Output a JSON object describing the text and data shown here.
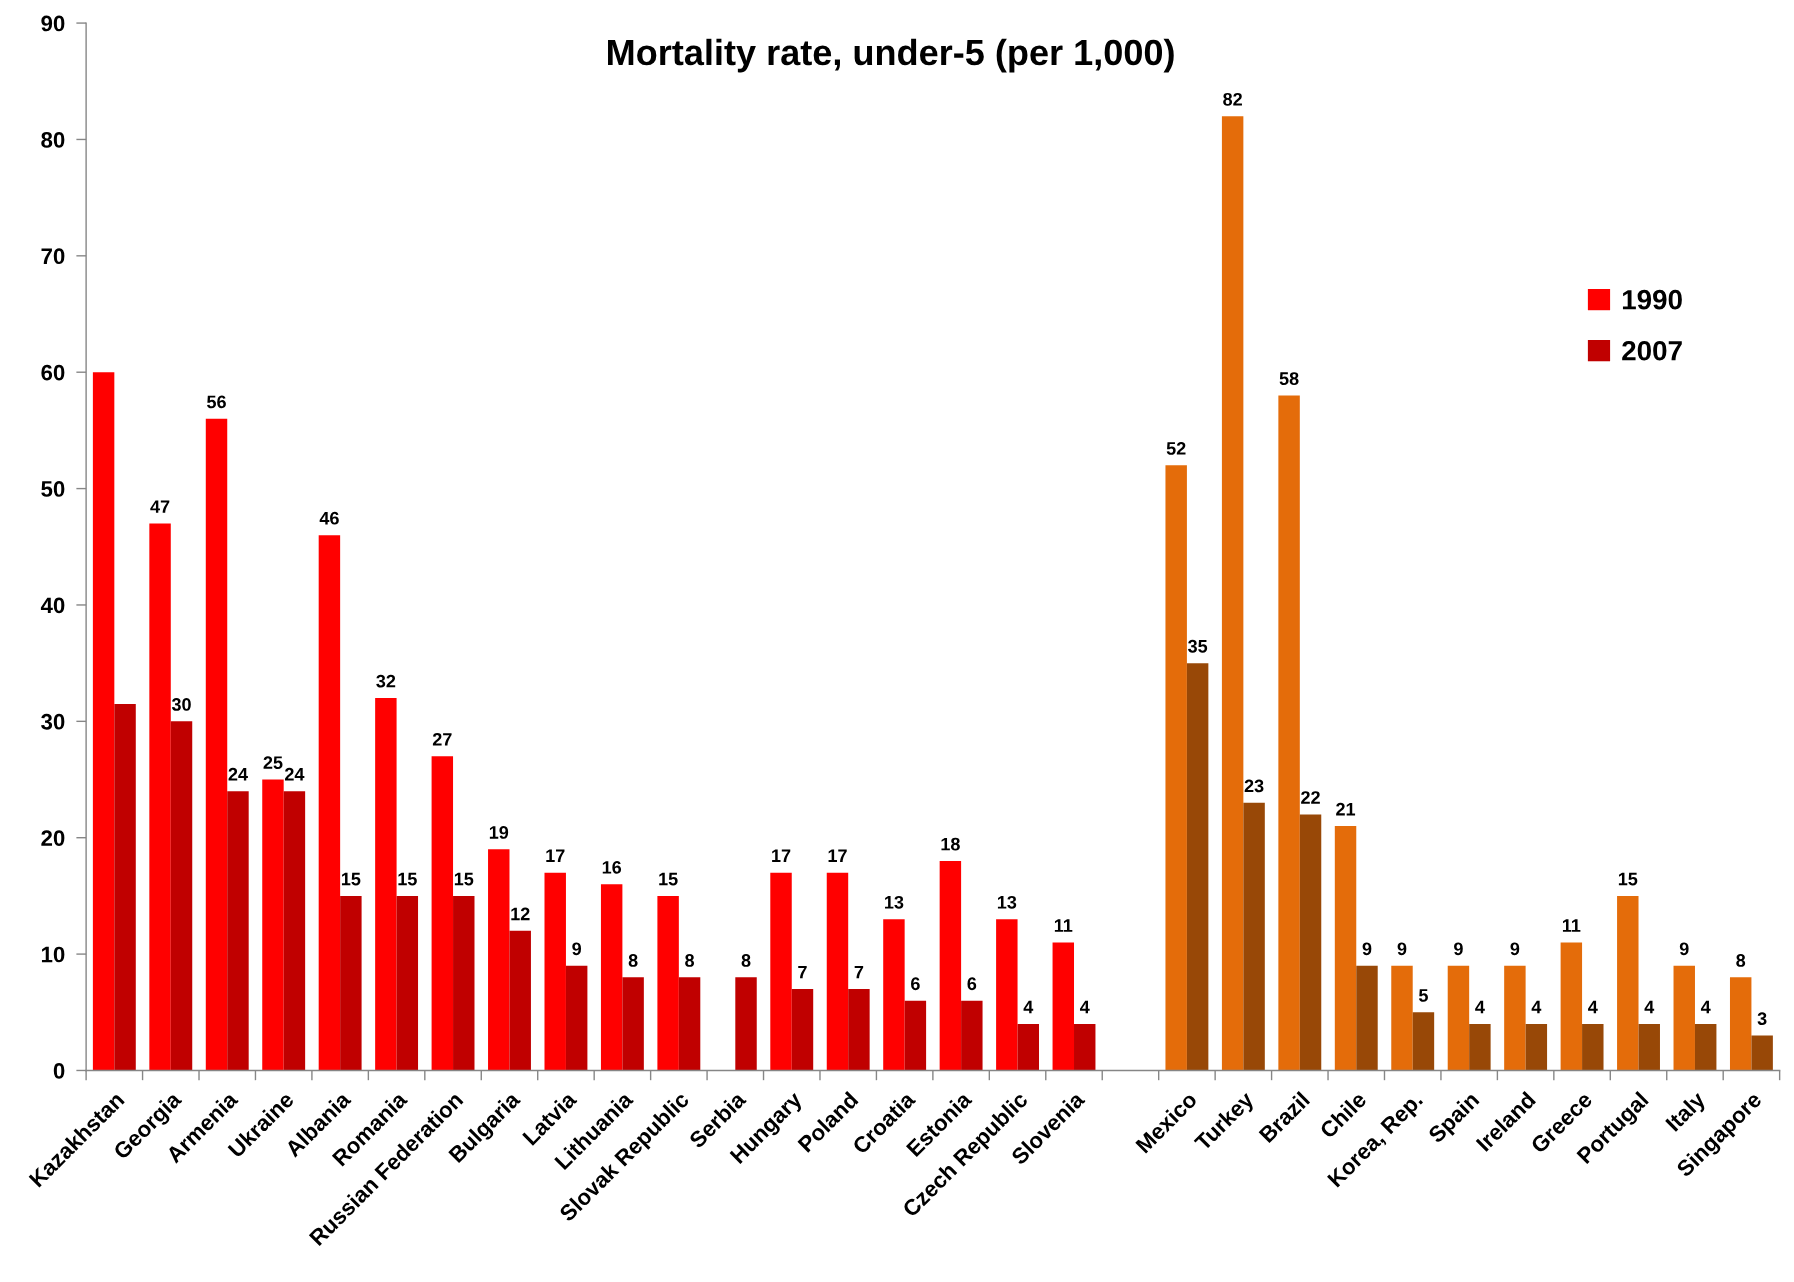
{
  "chart_data": {
    "type": "bar",
    "title": "Mortality rate, under-5 (per 1,000)",
    "categories": [
      "Kazakhstan",
      "Georgia",
      "Armenia",
      "Ukraine",
      "Albania",
      "Romania",
      "Russian Federation",
      "Bulgaria",
      "Latvia",
      "Lithuania",
      "Slovak Republic",
      "Serbia",
      "Hungary",
      "Poland",
      "Croatia",
      "Estonia",
      "Czech Republic",
      "Slovenia",
      null,
      "Mexico",
      "Turkey",
      "Brazil",
      "Chile",
      "Korea, Rep.",
      "Spain",
      "Ireland",
      "Greece",
      "Portugal",
      "Italy",
      "Singapore"
    ],
    "series": [
      {
        "name": "1990",
        "color": "#ff0000",
        "colors": [
          "#ff0000",
          "#ff0000",
          "#ff0000",
          "#ff0000",
          "#ff0000",
          "#ff0000",
          "#ff0000",
          "#ff0000",
          "#ff0000",
          "#ff0000",
          "#ff0000",
          "#ff0000",
          "#ff0000",
          "#ff0000",
          "#ff0000",
          "#ff0000",
          "#ff0000",
          "#ff0000",
          "#ff0000",
          "#e46c0a",
          "#e46c0a",
          "#e46c0a",
          "#e46c0a",
          "#e46c0a",
          "#e46c0a",
          "#e46c0a",
          "#e46c0a",
          "#e46c0a",
          "#e46c0a",
          "#e46c0a"
        ],
        "values": [
          60,
          47,
          56,
          25,
          46,
          32,
          27,
          19,
          17,
          16,
          15,
          null,
          17,
          17,
          13,
          18,
          13,
          11,
          null,
          52,
          82,
          58,
          21,
          9,
          9,
          9,
          11,
          15,
          9,
          8
        ],
        "value_labels": [
          null,
          "47",
          "56",
          "25",
          "46",
          "32",
          "27",
          "19",
          "17",
          "16",
          "15",
          null,
          "17",
          "17",
          "13",
          "18",
          "13",
          "11",
          null,
          "52",
          "82",
          "58",
          "21",
          "9",
          "9",
          "9",
          "11",
          "15",
          "9",
          "8"
        ]
      },
      {
        "name": "2007",
        "color": "#c00000",
        "colors": [
          "#c00000",
          "#c00000",
          "#c00000",
          "#c00000",
          "#c00000",
          "#c00000",
          "#c00000",
          "#c00000",
          "#c00000",
          "#c00000",
          "#c00000",
          "#c00000",
          "#c00000",
          "#c00000",
          "#c00000",
          "#c00000",
          "#c00000",
          "#c00000",
          "#c00000",
          "#984807",
          "#984807",
          "#984807",
          "#984807",
          "#984807",
          "#984807",
          "#984807",
          "#984807",
          "#984807",
          "#984807",
          "#984807"
        ],
        "values": [
          31.5,
          30,
          24,
          24,
          15,
          15,
          15,
          12,
          9,
          8,
          8,
          8,
          7,
          7,
          6,
          6,
          4,
          4,
          null,
          35,
          23,
          22,
          9,
          5,
          4,
          4,
          4,
          4,
          4,
          3
        ],
        "value_labels": [
          null,
          "30",
          "24",
          "24",
          "15",
          "15",
          "15",
          "12",
          "9",
          "8",
          "8",
          "8",
          "7",
          "7",
          "6",
          "6",
          "4",
          "4",
          null,
          "35",
          "23",
          "22",
          "9",
          "5",
          "4",
          "4",
          "4",
          "4",
          "4",
          "3"
        ]
      }
    ],
    "ylim": [
      0,
      90
    ],
    "yticks": [
      0,
      10,
      20,
      30,
      40,
      50,
      60,
      70,
      80,
      90
    ],
    "legend": "top right"
  }
}
